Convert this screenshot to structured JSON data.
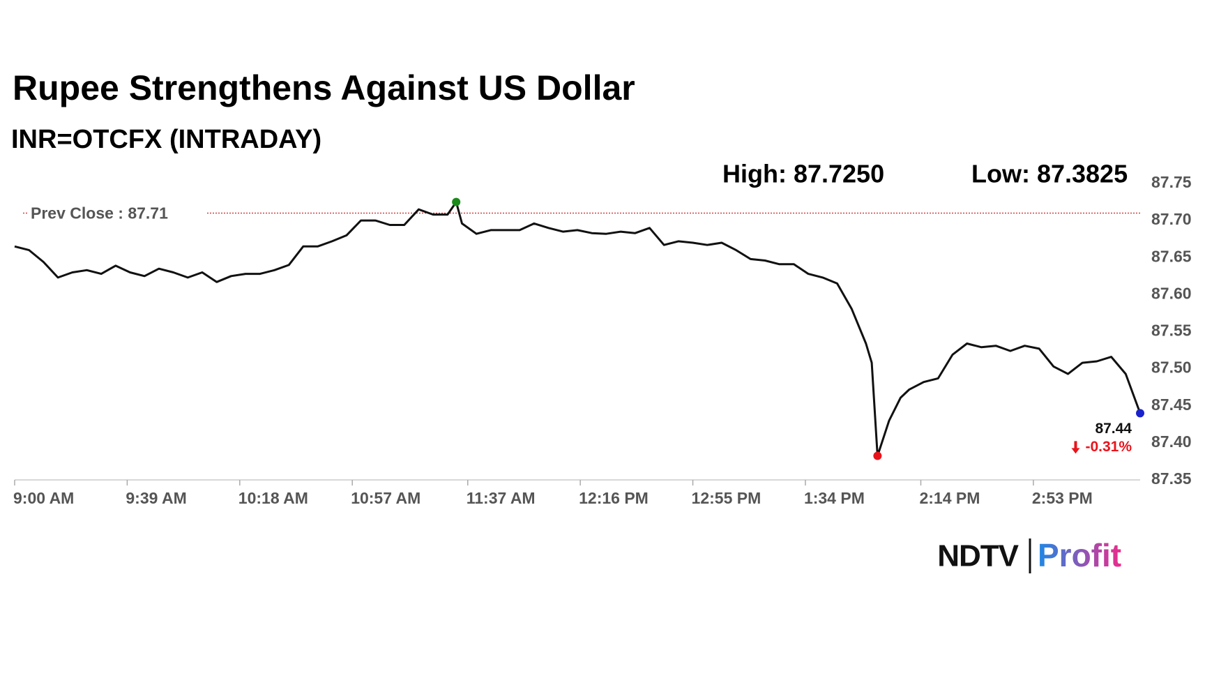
{
  "chart_data": {
    "type": "line",
    "title": "Rupee Strengthens Against US Dollar",
    "subtitle": "INR=OTCFX (INTRADAY)",
    "high_label": "High: 87.7250",
    "low_label": "Low: 87.3825",
    "prev_close": 87.71,
    "prev_close_label": "Prev Close : 87.71",
    "last_value_label": "87.44",
    "change_label": "-0.31%",
    "color": "#111111",
    "prev_close_color": "#cc2222",
    "marker_colors": {
      "high": "#1a8a1a",
      "low": "#e8141c",
      "last": "#1a22cc"
    },
    "x": [
      "9:00 AM",
      "9:05 AM",
      "9:10 AM",
      "9:15 AM",
      "9:20 AM",
      "9:25 AM",
      "9:30 AM",
      "9:35 AM",
      "9:40 AM",
      "9:45 AM",
      "9:50 AM",
      "9:55 AM",
      "10:00 AM",
      "10:05 AM",
      "10:10 AM",
      "10:15 AM",
      "10:20 AM",
      "10:25 AM",
      "10:30 AM",
      "10:35 AM",
      "10:40 AM",
      "10:45 AM",
      "10:50 AM",
      "10:55 AM",
      "11:00 AM",
      "11:05 AM",
      "11:10 AM",
      "11:15 AM",
      "11:20 AM",
      "11:25 AM",
      "11:30 AM",
      "11:33 AM",
      "11:35 AM",
      "11:40 AM",
      "11:45 AM",
      "11:50 AM",
      "11:55 AM",
      "12:00 PM",
      "12:05 PM",
      "12:10 PM",
      "12:15 PM",
      "12:20 PM",
      "12:25 PM",
      "12:30 PM",
      "12:35 PM",
      "12:40 PM",
      "12:45 PM",
      "12:50 PM",
      "12:55 PM",
      "1:00 PM",
      "1:05 PM",
      "1:10 PM",
      "1:15 PM",
      "1:20 PM",
      "1:25 PM",
      "1:30 PM",
      "1:35 PM",
      "1:40 PM",
      "1:45 PM",
      "1:50 PM",
      "1:55 PM",
      "1:57 PM",
      "1:59 PM",
      "2:03 PM",
      "2:07 PM",
      "2:10 PM",
      "2:15 PM",
      "2:20 PM",
      "2:25 PM",
      "2:30 PM",
      "2:35 PM",
      "2:40 PM",
      "2:45 PM",
      "2:50 PM",
      "2:55 PM",
      "3:00 PM",
      "3:05 PM",
      "3:10 PM",
      "3:15 PM",
      "3:20 PM",
      "3:25 PM",
      "3:30 PM"
    ],
    "values": [
      87.665,
      87.66,
      87.644,
      87.623,
      87.63,
      87.633,
      87.628,
      87.639,
      87.63,
      87.625,
      87.635,
      87.63,
      87.623,
      87.63,
      87.617,
      87.625,
      87.628,
      87.628,
      87.633,
      87.64,
      87.665,
      87.665,
      87.672,
      87.68,
      87.7,
      87.7,
      87.694,
      87.694,
      87.715,
      87.708,
      87.708,
      87.725,
      87.696,
      87.682,
      87.687,
      87.687,
      87.687,
      87.696,
      87.69,
      87.685,
      87.687,
      87.683,
      87.682,
      87.685,
      87.683,
      87.69,
      87.667,
      87.672,
      87.67,
      87.667,
      87.67,
      87.66,
      87.648,
      87.646,
      87.641,
      87.641,
      87.628,
      87.623,
      87.615,
      87.581,
      87.534,
      87.508,
      87.3825,
      87.43,
      87.461,
      87.472,
      87.482,
      87.487,
      87.519,
      87.534,
      87.529,
      87.531,
      87.524,
      87.531,
      87.527,
      87.503,
      87.493,
      87.508,
      87.51,
      87.516,
      87.493,
      87.44
    ],
    "xticks": [
      "9:00 AM",
      "9:39 AM",
      "10:18 AM",
      "10:57 AM",
      "11:37 AM",
      "12:16 PM",
      "12:55 PM",
      "1:34 PM",
      "2:14 PM",
      "2:53 PM"
    ],
    "ylim": [
      87.35,
      87.75
    ],
    "yticks": [
      87.35,
      {
        "value": 87.4,
        "label": "87.40"
      },
      87.45,
      {
        "value": 87.5,
        "label": "87.50"
      },
      87.55,
      {
        "value": 87.6,
        "label": "87.60"
      },
      87.65,
      {
        "value": 87.7,
        "label": "87.70"
      },
      87.75
    ],
    "y_axis_side": "right"
  },
  "logo": {
    "left": "NDTV",
    "right": "Profit"
  }
}
